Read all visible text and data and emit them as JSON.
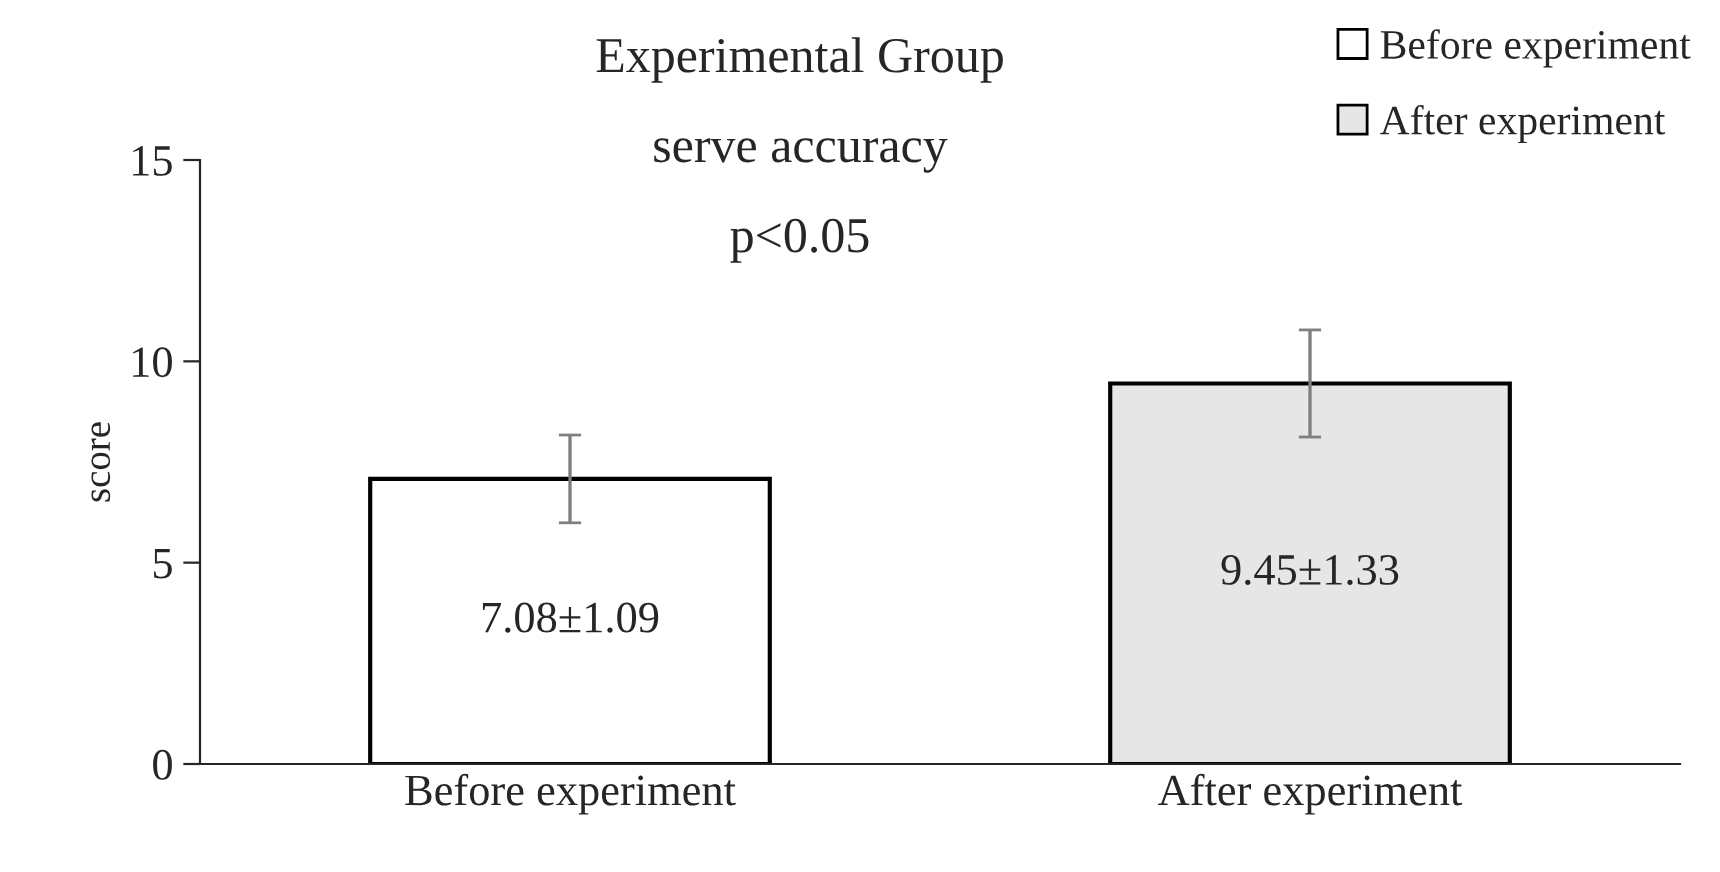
{
  "chart_data": {
    "type": "bar",
    "title": "Experimental Group",
    "subtitle": "serve accuracy",
    "annotations": [
      "p<0.05"
    ],
    "ylabel": "score",
    "categories": [
      "Before experiment",
      "After experiment"
    ],
    "series": [
      {
        "name": "Before experiment",
        "color": "#ffffff",
        "values": [
          7.08,
          null
        ],
        "errors": [
          1.09,
          null
        ],
        "value_labels": [
          "7.08±1.09",
          null
        ]
      },
      {
        "name": "After experiment",
        "color": "#e6e6e6",
        "values": [
          null,
          9.45
        ],
        "errors": [
          null,
          1.33
        ],
        "value_labels": [
          null,
          "9.45±1.33"
        ]
      }
    ],
    "ylim": [
      0,
      15
    ],
    "yticks": [
      0,
      5,
      10,
      15
    ],
    "grid": false,
    "legend": "top right"
  }
}
